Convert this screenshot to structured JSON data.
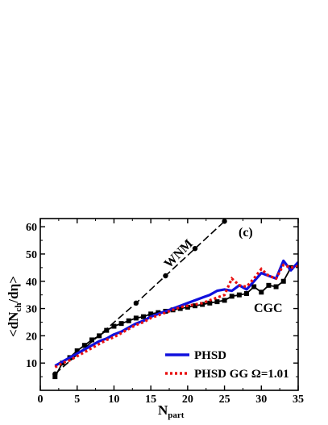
{
  "chart_data": {
    "type": "line",
    "panel_label": "(c)",
    "xlabel": "N",
    "xlabel_sub": "part",
    "ylabel": "<dN",
    "ylabel_sub": "ch",
    "ylabel_tail": "/dη>",
    "xlim": [
      0,
      35
    ],
    "ylim": [
      0,
      63
    ],
    "xticks": [
      0,
      5,
      10,
      15,
      20,
      25,
      30,
      35
    ],
    "yticks": [
      10,
      20,
      30,
      40,
      50,
      60
    ],
    "colors": {
      "phsd": "#1010dd",
      "phsd_gg": "#e81010",
      "data": "#000000"
    },
    "series": [
      {
        "name": "WNM",
        "style": "black-dashed-circles",
        "x": [
          2,
          13,
          17,
          21,
          25
        ],
        "y": [
          6,
          32,
          42,
          52,
          62
        ]
      },
      {
        "name": "CGC",
        "style": "black-solid-squares",
        "x": [
          2,
          3,
          4,
          5,
          6,
          7,
          8,
          9,
          10,
          11,
          12,
          13,
          14,
          15,
          16,
          17,
          18,
          19,
          20,
          21,
          22,
          23,
          24,
          25,
          26,
          27,
          28,
          29,
          30,
          31,
          32,
          33,
          34
        ],
        "y": [
          5,
          10,
          12,
          14.5,
          16.5,
          18.5,
          20,
          22,
          23.5,
          24.5,
          25.5,
          26.5,
          27,
          28,
          28.5,
          29,
          29.5,
          30,
          30.5,
          31,
          31.5,
          32,
          32.5,
          33,
          34.5,
          35,
          35.5,
          38,
          36,
          38.5,
          38,
          40,
          45
        ]
      },
      {
        "name": "PHSD",
        "style": "blue-solid",
        "x": [
          2,
          3,
          4,
          5,
          6,
          7,
          8,
          9,
          10,
          11,
          12,
          13,
          14,
          15,
          16,
          17,
          18,
          19,
          20,
          21,
          22,
          23,
          24,
          25,
          26,
          27,
          28,
          29,
          30,
          31,
          32,
          33,
          34,
          35
        ],
        "y": [
          9,
          10.5,
          12,
          13.5,
          15,
          16.5,
          18,
          19,
          20.5,
          21.5,
          23,
          24.5,
          25.5,
          27,
          28,
          29,
          30,
          31,
          32,
          33,
          34,
          35,
          36.5,
          37,
          36.5,
          38.5,
          37,
          40,
          43,
          42,
          41,
          47.5,
          44,
          47
        ]
      },
      {
        "name": "PHSD GG Ω=1.01",
        "style": "red-dotted",
        "x": [
          2,
          3,
          4,
          5,
          6,
          7,
          8,
          9,
          10,
          11,
          12,
          13,
          14,
          15,
          16,
          17,
          18,
          19,
          20,
          21,
          22,
          23,
          24,
          25,
          26,
          27,
          28,
          29,
          30,
          31,
          32,
          33,
          34,
          35
        ],
        "y": [
          8.5,
          10,
          11,
          12.5,
          14,
          15.5,
          17,
          18.5,
          19.5,
          21,
          22.5,
          24,
          25,
          26.5,
          27.5,
          28.5,
          29.5,
          30.5,
          31,
          31.5,
          32,
          33,
          34,
          35,
          41,
          38.5,
          38,
          41,
          44.5,
          42,
          41,
          46,
          45,
          45.5
        ]
      }
    ],
    "legend": [
      {
        "label": "PHSD",
        "color": "#1010dd",
        "dash": "solid"
      },
      {
        "label": "PHSD GG Ω=1.01",
        "color": "#e81010",
        "dash": "dotted"
      }
    ],
    "legend_position": "bottom-right",
    "grid": false
  }
}
